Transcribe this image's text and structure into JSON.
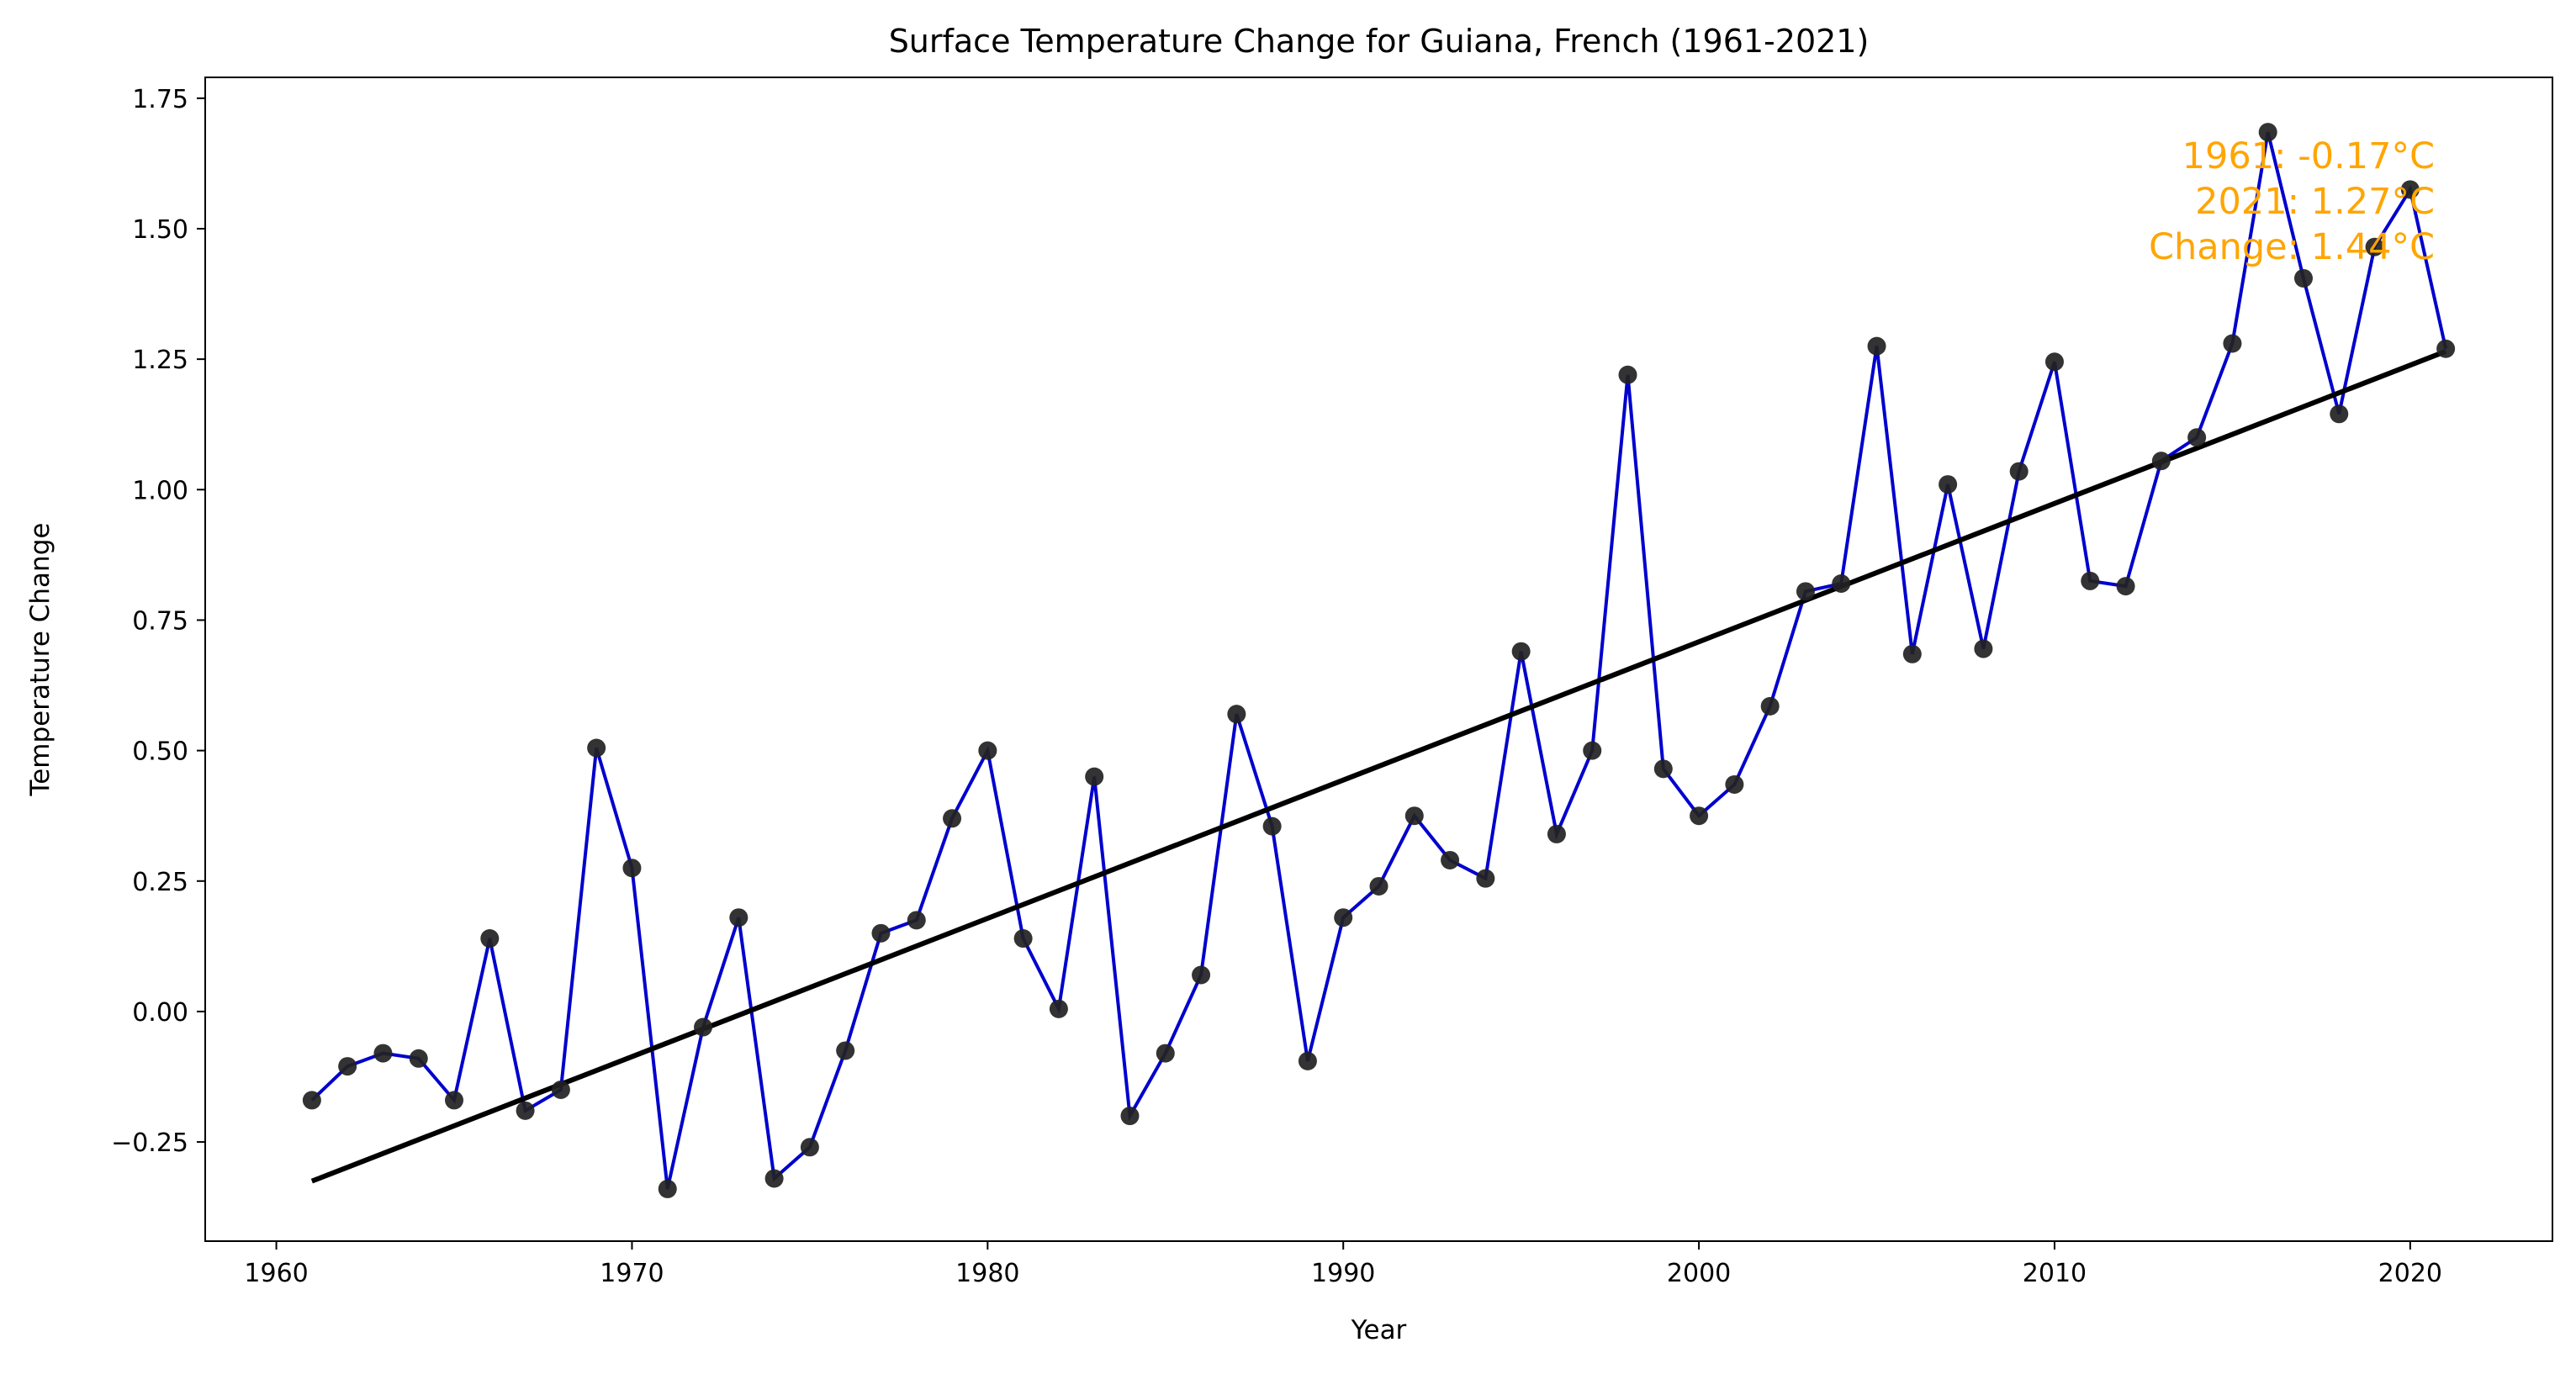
{
  "chart_data": {
    "type": "line",
    "title": "Surface Temperature Change for Guiana, French (1961-2021)",
    "xlabel": "Year",
    "ylabel": "Temperature Change",
    "xlim": [
      1958,
      2024
    ],
    "ylim": [
      -0.44,
      1.79
    ],
    "x_ticks": [
      1960,
      1970,
      1980,
      1990,
      2000,
      2010,
      2020
    ],
    "y_ticks": [
      -0.25,
      0.0,
      0.25,
      0.5,
      0.75,
      1.0,
      1.25,
      1.5,
      1.75
    ],
    "y_tick_labels": [
      "−0.25",
      "0.00",
      "0.25",
      "0.50",
      "0.75",
      "1.00",
      "1.25",
      "1.50",
      "1.75"
    ],
    "grid": false,
    "colors": {
      "line": "#0000CD",
      "marker": "#222222",
      "trend": "#000000",
      "annotation": "#FFA500"
    },
    "series": [
      {
        "x": [
          1961,
          1962,
          1963,
          1964,
          1965,
          1966,
          1967,
          1968,
          1969,
          1970,
          1971,
          1972,
          1973,
          1974,
          1975,
          1976,
          1977,
          1978,
          1979,
          1980,
          1981,
          1982,
          1983,
          1984,
          1985,
          1986,
          1987,
          1988,
          1989,
          1990,
          1991,
          1992,
          1993,
          1994,
          1995,
          1996,
          1997,
          1998,
          1999,
          2000,
          2001,
          2002,
          2003,
          2004,
          2005,
          2006,
          2007,
          2008,
          2009,
          2010,
          2011,
          2012,
          2013,
          2014,
          2015,
          2016,
          2017,
          2018,
          2019,
          2020,
          2021
        ],
        "values": [
          -0.17,
          -0.105,
          -0.08,
          -0.09,
          -0.17,
          0.14,
          -0.19,
          -0.15,
          0.505,
          0.275,
          -0.34,
          -0.03,
          0.18,
          -0.32,
          -0.26,
          -0.075,
          0.15,
          0.175,
          0.37,
          0.5,
          0.14,
          0.005,
          0.45,
          -0.2,
          -0.08,
          0.07,
          0.57,
          0.355,
          -0.095,
          0.18,
          0.24,
          0.375,
          0.29,
          0.255,
          0.69,
          0.34,
          0.5,
          1.22,
          0.465,
          0.375,
          0.435,
          0.585,
          0.805,
          0.82,
          1.275,
          0.685,
          1.01,
          0.695,
          1.035,
          1.245,
          0.825,
          0.815,
          1.055,
          1.1,
          1.28,
          1.685,
          1.405,
          1.145,
          1.465,
          1.575,
          1.27
        ]
      }
    ],
    "trend": {
      "x": [
        1961,
        2021
      ],
      "values": [
        -0.325,
        1.265
      ]
    },
    "annotations": [
      "1961: -0.17°C",
      "2021: 1.27°C",
      "Change: 1.44°C"
    ]
  }
}
